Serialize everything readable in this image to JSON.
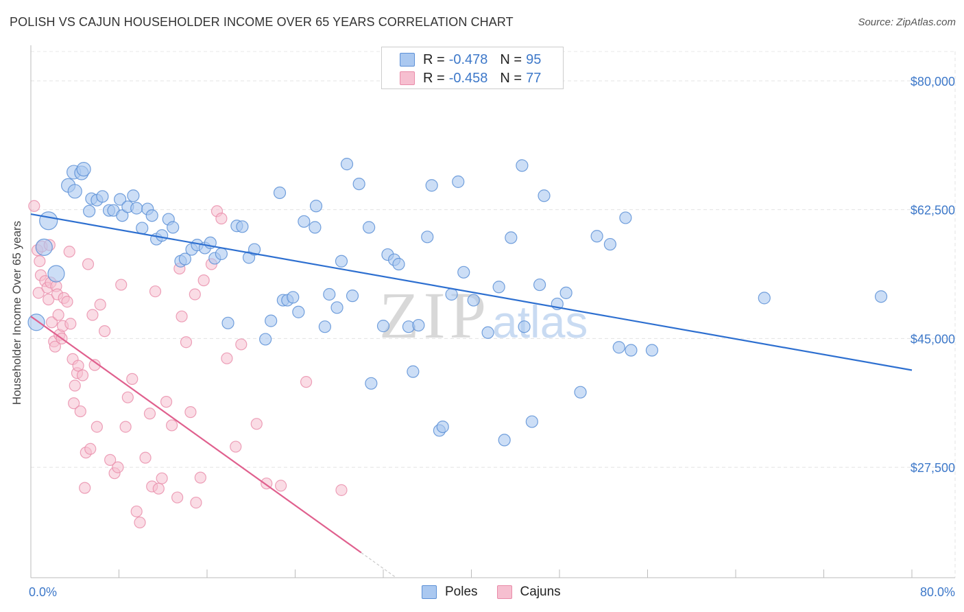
{
  "title": "POLISH VS CAJUN HOUSEHOLDER INCOME OVER 65 YEARS CORRELATION CHART",
  "source": "Source: ZipAtlas.com",
  "watermark": {
    "zip": "ZIP",
    "atlas": "atlas"
  },
  "legend": {
    "r_label": "R =",
    "n_label": "N =",
    "rows": [
      {
        "r": "-0.478",
        "n": "95"
      },
      {
        "r": "-0.458",
        "n": "77"
      }
    ]
  },
  "bottom_legend": [
    "Poles",
    "Cajuns"
  ],
  "colors": {
    "blue_fill": "#aac8f0",
    "blue_stroke": "#5b8fd6",
    "blue_line": "#2d6fd0",
    "pink_fill": "#f6bfd0",
    "pink_stroke": "#e98aa8",
    "pink_line": "#e0608e",
    "axis_text": "#3d78c9"
  },
  "chart_data": {
    "type": "scatter",
    "title": "POLISH VS CAJUN HOUSEHOLDER INCOME OVER 65 YEARS CORRELATION CHART",
    "xlabel": "",
    "ylabel": "Householder Income Over 65 years",
    "xlim": [
      0,
      80
    ],
    "ylim": [
      12500,
      84000
    ],
    "x_tick_labels": [
      "0.0%",
      "80.0%"
    ],
    "y_ticks": [
      27500,
      45000,
      62500,
      80000
    ],
    "y_tick_labels": [
      "$27,500",
      "$45,000",
      "$62,500",
      "$80,000"
    ],
    "grid": true,
    "series": [
      {
        "name": "Poles",
        "r": -0.478,
        "n": 95,
        "trend": {
          "x": [
            0,
            80
          ],
          "y": [
            61900,
            40700
          ]
        },
        "points": [
          [
            0.5,
            47.2
          ],
          [
            1.2,
            57.4
          ],
          [
            1.6,
            61.0
          ],
          [
            2.3,
            53.8
          ],
          [
            3.4,
            65.8
          ],
          [
            3.9,
            67.6
          ],
          [
            4.0,
            65.0
          ],
          [
            4.6,
            67.5
          ],
          [
            4.8,
            68.0
          ],
          [
            5.3,
            62.3
          ],
          [
            5.5,
            64.0
          ],
          [
            6.0,
            63.8
          ],
          [
            6.5,
            64.3
          ],
          [
            7.1,
            62.4
          ],
          [
            7.5,
            62.4
          ],
          [
            8.1,
            63.9
          ],
          [
            8.3,
            61.7
          ],
          [
            8.8,
            62.9
          ],
          [
            9.3,
            64.4
          ],
          [
            9.6,
            62.7
          ],
          [
            10.1,
            60.0
          ],
          [
            10.6,
            62.6
          ],
          [
            11.0,
            61.7
          ],
          [
            11.4,
            58.5
          ],
          [
            11.9,
            59.0
          ],
          [
            12.5,
            61.2
          ],
          [
            12.9,
            60.1
          ],
          [
            13.6,
            55.5
          ],
          [
            14.0,
            55.8
          ],
          [
            14.6,
            57.1
          ],
          [
            15.1,
            57.7
          ],
          [
            15.8,
            57.3
          ],
          [
            16.3,
            58.0
          ],
          [
            16.7,
            55.9
          ],
          [
            17.3,
            56.5
          ],
          [
            17.9,
            47.1
          ],
          [
            18.7,
            60.3
          ],
          [
            19.2,
            60.2
          ],
          [
            19.8,
            56.0
          ],
          [
            20.3,
            57.1
          ],
          [
            21.3,
            44.9
          ],
          [
            21.8,
            47.4
          ],
          [
            22.6,
            64.8
          ],
          [
            22.9,
            50.2
          ],
          [
            23.3,
            50.2
          ],
          [
            23.8,
            50.6
          ],
          [
            24.3,
            48.6
          ],
          [
            24.8,
            60.9
          ],
          [
            25.8,
            60.1
          ],
          [
            25.9,
            63.0
          ],
          [
            26.7,
            46.6
          ],
          [
            27.1,
            51.0
          ],
          [
            27.8,
            49.2
          ],
          [
            28.2,
            55.5
          ],
          [
            28.7,
            68.7
          ],
          [
            29.2,
            50.8
          ],
          [
            29.8,
            66.0
          ],
          [
            30.7,
            60.1
          ],
          [
            30.9,
            38.9
          ],
          [
            32.0,
            46.7
          ],
          [
            32.4,
            56.4
          ],
          [
            33.0,
            55.7
          ],
          [
            33.4,
            55.1
          ],
          [
            34.3,
            46.6
          ],
          [
            34.7,
            40.5
          ],
          [
            35.2,
            46.8
          ],
          [
            36.0,
            58.8
          ],
          [
            36.4,
            65.8
          ],
          [
            37.1,
            32.5
          ],
          [
            37.4,
            33.0
          ],
          [
            38.2,
            51.0
          ],
          [
            38.8,
            66.3
          ],
          [
            39.3,
            54.0
          ],
          [
            40.2,
            50.2
          ],
          [
            41.5,
            45.8
          ],
          [
            42.5,
            52.0
          ],
          [
            43.0,
            31.2
          ],
          [
            43.6,
            58.7
          ],
          [
            44.6,
            68.5
          ],
          [
            44.8,
            46.6
          ],
          [
            45.5,
            33.7
          ],
          [
            46.2,
            52.3
          ],
          [
            46.6,
            64.4
          ],
          [
            47.8,
            49.7
          ],
          [
            48.6,
            51.2
          ],
          [
            49.9,
            37.7
          ],
          [
            51.4,
            58.9
          ],
          [
            52.6,
            57.8
          ],
          [
            53.4,
            43.8
          ],
          [
            54.0,
            61.4
          ],
          [
            54.5,
            43.4
          ],
          [
            56.4,
            43.4
          ],
          [
            66.6,
            50.5
          ],
          [
            77.2,
            50.7
          ]
        ]
      },
      {
        "name": "Cajuns",
        "r": -0.458,
        "n": 77,
        "trend": {
          "x": [
            0,
            30
          ],
          "y": [
            48000,
            15900
          ]
        },
        "points": [
          [
            0.3,
            63.0
          ],
          [
            0.6,
            57.0
          ],
          [
            0.7,
            51.2
          ],
          [
            0.8,
            55.5
          ],
          [
            0.9,
            53.6
          ],
          [
            1.0,
            57.5
          ],
          [
            1.3,
            52.8
          ],
          [
            1.5,
            51.9
          ],
          [
            1.6,
            50.3
          ],
          [
            1.7,
            57.7
          ],
          [
            1.8,
            52.6
          ],
          [
            1.9,
            47.2
          ],
          [
            2.1,
            44.6
          ],
          [
            2.2,
            43.9
          ],
          [
            2.3,
            52.1
          ],
          [
            2.4,
            51.0
          ],
          [
            2.5,
            48.2
          ],
          [
            2.6,
            45.5
          ],
          [
            2.8,
            45.0
          ],
          [
            2.9,
            46.7
          ],
          [
            3.0,
            50.5
          ],
          [
            3.3,
            50.0
          ],
          [
            3.5,
            56.8
          ],
          [
            3.6,
            47.0
          ],
          [
            3.8,
            42.2
          ],
          [
            3.9,
            36.2
          ],
          [
            4.0,
            38.6
          ],
          [
            4.2,
            40.3
          ],
          [
            4.3,
            41.3
          ],
          [
            4.5,
            35.1
          ],
          [
            4.7,
            40.0
          ],
          [
            4.9,
            24.7
          ],
          [
            5.0,
            29.5
          ],
          [
            5.2,
            55.1
          ],
          [
            5.4,
            30.0
          ],
          [
            5.6,
            48.2
          ],
          [
            5.8,
            41.4
          ],
          [
            6.0,
            33.0
          ],
          [
            6.3,
            49.6
          ],
          [
            6.7,
            46.0
          ],
          [
            7.2,
            28.5
          ],
          [
            7.6,
            26.7
          ],
          [
            7.9,
            27.5
          ],
          [
            8.2,
            52.3
          ],
          [
            8.6,
            33.0
          ],
          [
            8.8,
            37.0
          ],
          [
            9.2,
            39.5
          ],
          [
            9.6,
            21.5
          ],
          [
            9.9,
            20.0
          ],
          [
            10.4,
            28.8
          ],
          [
            10.8,
            34.8
          ],
          [
            11.0,
            24.9
          ],
          [
            11.3,
            51.4
          ],
          [
            11.6,
            24.6
          ],
          [
            11.9,
            26.0
          ],
          [
            12.3,
            36.4
          ],
          [
            12.8,
            33.2
          ],
          [
            13.3,
            23.4
          ],
          [
            13.5,
            54.5
          ],
          [
            13.7,
            48.0
          ],
          [
            14.1,
            44.5
          ],
          [
            14.5,
            35.0
          ],
          [
            14.9,
            51.0
          ],
          [
            15.0,
            22.7
          ],
          [
            15.4,
            26.1
          ],
          [
            15.7,
            52.9
          ],
          [
            16.4,
            55.1
          ],
          [
            16.9,
            62.3
          ],
          [
            17.3,
            61.3
          ],
          [
            17.8,
            42.3
          ],
          [
            18.6,
            30.3
          ],
          [
            19.1,
            44.2
          ],
          [
            20.5,
            33.4
          ],
          [
            21.4,
            25.3
          ],
          [
            22.7,
            25.0
          ],
          [
            25.0,
            39.1
          ],
          [
            28.2,
            24.4
          ]
        ]
      }
    ]
  }
}
